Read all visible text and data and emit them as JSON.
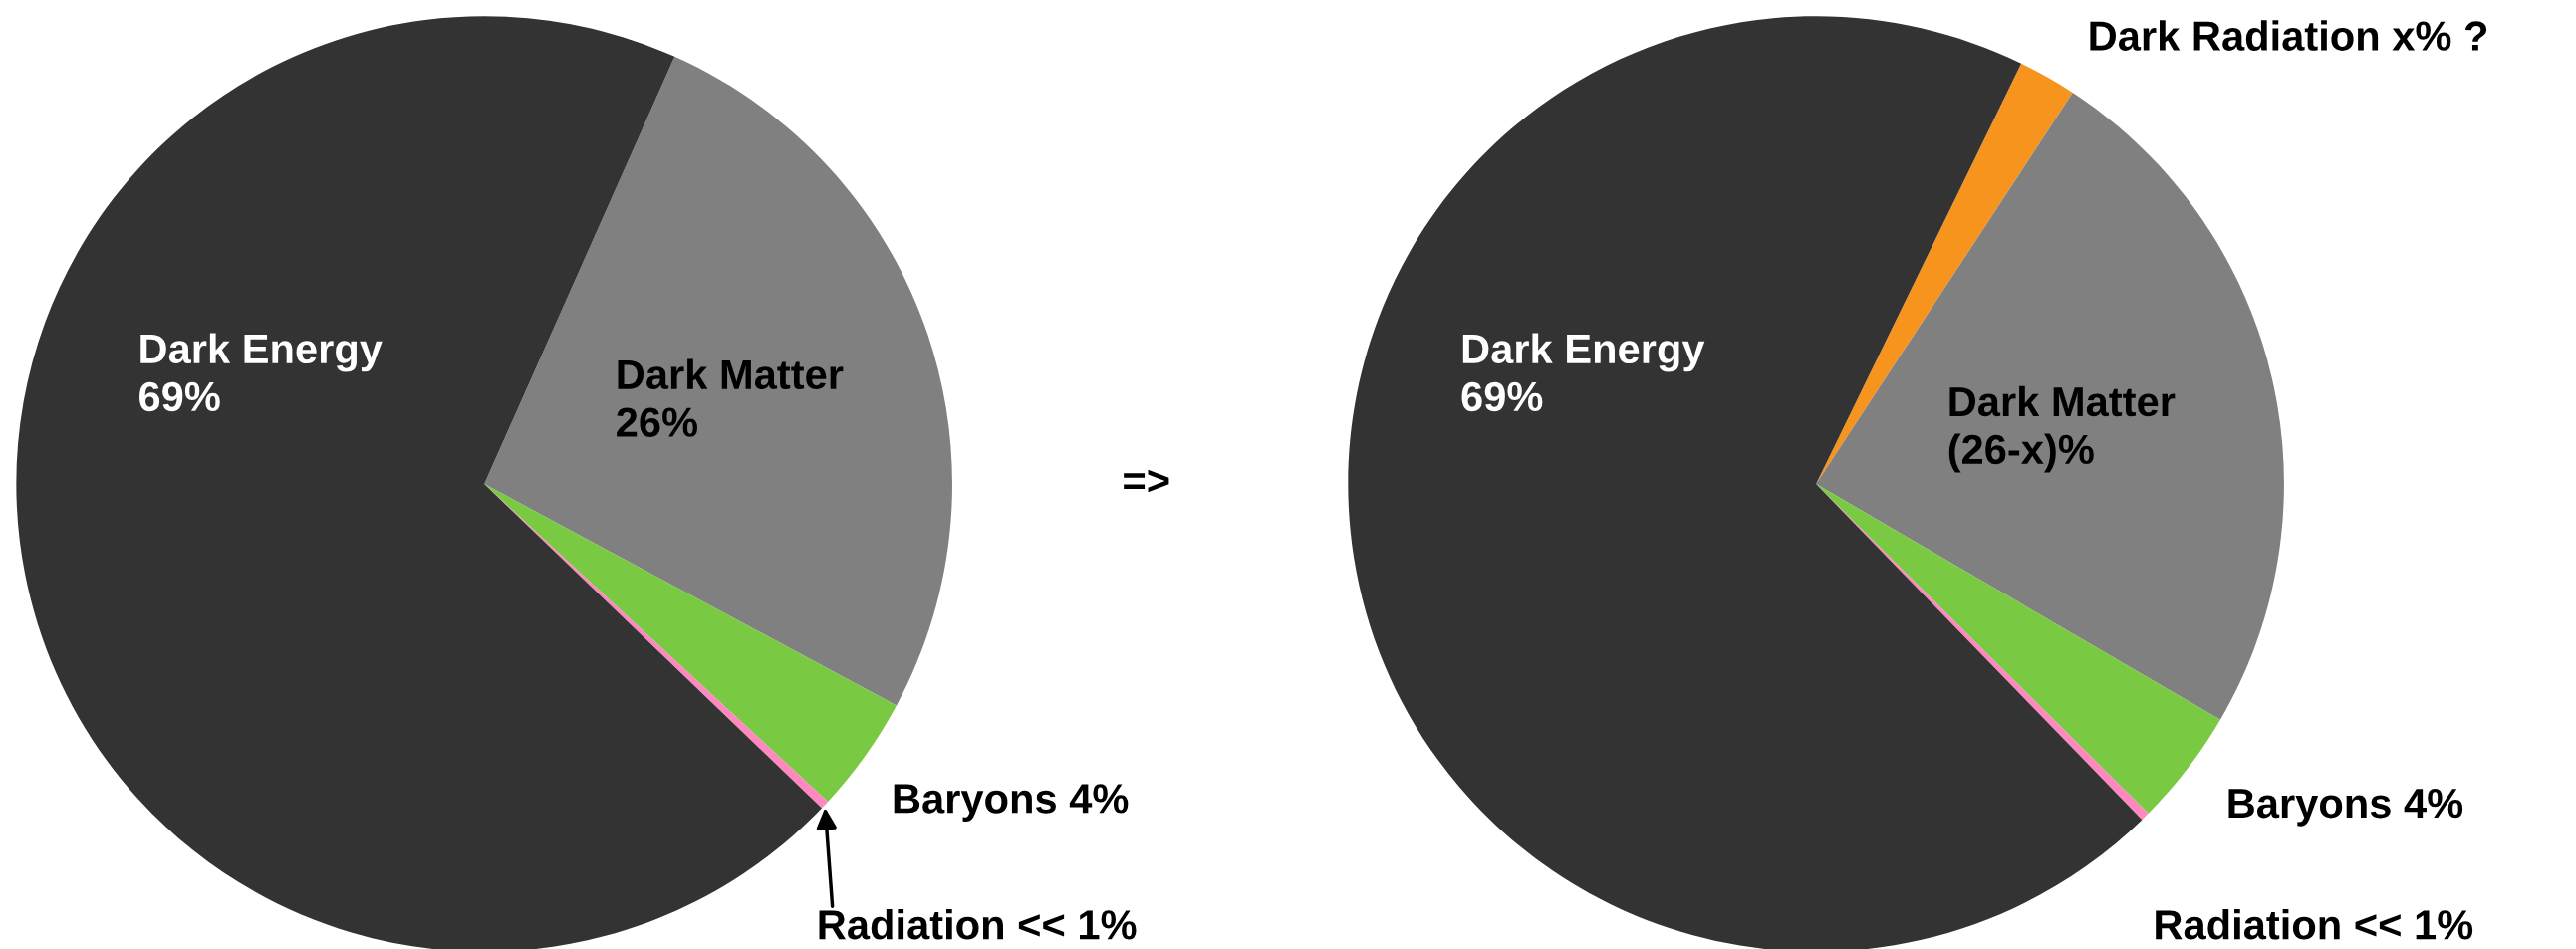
{
  "chart_data": [
    {
      "type": "pie",
      "categories": [
        "Dark Matter",
        "Baryons",
        "Radiation",
        "Dark Energy"
      ],
      "values": [
        26,
        4,
        0.3,
        69
      ],
      "value_labels": [
        "26%",
        "4%",
        "<< 1%",
        "69%"
      ],
      "colors": [
        "#808080",
        "#7ac943",
        "#ff88c0",
        "#333333"
      ],
      "annotations": [
        "=>"
      ]
    },
    {
      "type": "pie",
      "categories": [
        "Dark Radiation x% ?",
        "Dark Matter\n(26-x)%",
        "Baryons",
        "Radiation",
        "Dark Energy"
      ],
      "values": [
        2,
        24,
        4,
        0.3,
        69
      ],
      "value_labels": [
        null,
        null,
        "4%",
        "<< 1%",
        "69%"
      ],
      "colors": [
        "#f7941d",
        "#808080",
        "#7ac943",
        "#ff88c0",
        "#333333"
      ]
    }
  ]
}
